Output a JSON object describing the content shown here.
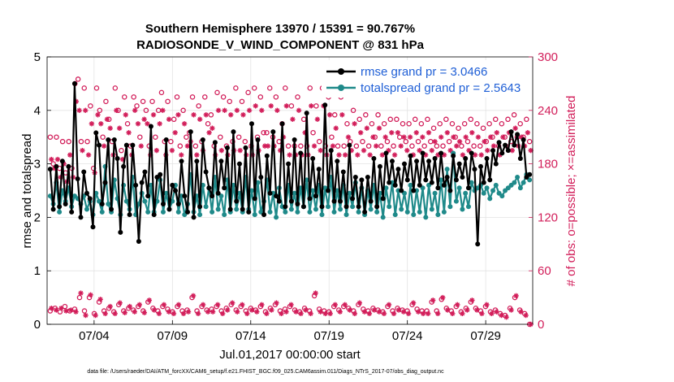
{
  "chart_data": {
    "type": "line",
    "title": "Southern Hemisphere 13970 / 15391 = 90.767%",
    "subtitle": "RADIOSONDE_V_WIND_COMPONENT @ 831 hPa",
    "xlabel": "Jul.01,2017 00:00:00 start",
    "ylabel": "rmse and totalspread",
    "ylabel_right": "# of obs: o=possible; ×=assimilated",
    "footnote": "data file: /Users/raeder/DAI/ATM_forcXX/CAM6_setup/f.e21.FHIST_BGC.f09_025.CAM6assim.011/Diags_NTrS_2017-07/obs_diag_output.nc",
    "x_tick_labels": [
      "07/04",
      "07/09",
      "07/14",
      "07/19",
      "07/24",
      "07/29"
    ],
    "x_tick_days": [
      4,
      9,
      14,
      19,
      24,
      29
    ],
    "xlim": [
      1.0,
      32.0
    ],
    "ylim": [
      0,
      5
    ],
    "y_ticks": [
      "0",
      "1",
      "2",
      "3",
      "4",
      "5"
    ],
    "y2lim": [
      0,
      300
    ],
    "y2_ticks": [
      "0",
      "60",
      "120",
      "180",
      "240",
      "300"
    ],
    "grid": true,
    "legend_position": "top-right",
    "series": [
      {
        "name": "rmse grand pr = 3.0466",
        "color": "#000000",
        "axis": "left",
        "values": [
          2.9,
          2.15,
          2.95,
          2.2,
          3.05,
          2.25,
          2.95,
          2.1,
          4.5,
          2.72,
          2.0,
          2.85,
          2.45,
          2.35,
          1.82,
          3.58,
          3.35,
          2.25,
          2.65,
          3.45,
          2.15,
          3.45,
          3.1,
          1.72,
          2.95,
          3.35,
          2.05,
          3.35,
          2.6,
          1.55,
          2.65,
          2.85,
          2.4,
          3.7,
          2.05,
          2.75,
          2.8,
          2.25,
          3.45,
          2.15,
          2.6,
          2.5,
          2.25,
          3.05,
          2.4,
          2.1,
          3.6,
          2.0,
          3.05,
          2.2,
          3.45,
          2.85,
          2.55,
          2.4,
          3.4,
          2.45,
          3.05,
          2.55,
          3.3,
          2.15,
          3.6,
          2.3,
          3.0,
          2.15,
          3.3,
          2.1,
          3.75,
          2.35,
          3.45,
          2.75,
          2.05,
          3.15,
          2.45,
          3.6,
          2.4,
          2.3,
          3.75,
          2.2,
          3.0,
          2.3,
          3.45,
          2.25,
          3.2,
          2.2,
          3.95,
          2.35,
          3.1,
          2.4,
          2.9,
          2.2,
          4.1,
          2.5,
          3.25,
          2.3,
          3.05,
          2.3,
          2.85,
          2.2,
          3.35,
          2.35,
          2.75,
          2.2,
          2.7,
          2.1,
          2.75,
          2.3,
          3.1,
          2.2,
          2.95,
          2.35,
          3.2,
          2.65,
          3.05,
          2.6,
          2.9,
          2.5,
          3.0,
          2.7,
          3.15,
          2.5,
          3.05,
          2.6,
          3.2,
          2.7,
          3.05,
          2.65,
          3.1,
          2.55,
          3.2,
          2.6,
          2.75,
          2.5,
          3.15,
          2.7,
          3.0,
          2.75,
          3.1,
          2.55,
          3.2,
          2.9,
          1.5,
          2.95,
          2.65,
          3.1,
          2.7,
          3.25,
          3.0,
          3.4,
          3.2,
          3.35,
          3.25,
          3.6,
          3.35,
          3.55,
          3.1,
          3.45,
          2.75,
          2.8
        ]
      },
      {
        "name": "totalspread grand pr = 2.5643",
        "color": "#1f8a8a",
        "axis": "left",
        "values": [
          2.4,
          2.25,
          2.65,
          2.1,
          2.5,
          2.3,
          2.55,
          2.2,
          2.4,
          2.35,
          2.25,
          2.4,
          2.15,
          2.3,
          2.05,
          2.45,
          2.3,
          2.1,
          2.95,
          2.25,
          2.1,
          2.7,
          2.35,
          2.05,
          2.6,
          2.3,
          2.15,
          2.75,
          2.05,
          2.25,
          2.45,
          2.3,
          2.1,
          2.6,
          2.1,
          2.3,
          2.7,
          2.1,
          2.45,
          2.15,
          2.3,
          2.6,
          2.1,
          2.4,
          2.05,
          2.25,
          2.8,
          2.1,
          2.4,
          2.05,
          2.6,
          2.2,
          2.55,
          2.1,
          2.75,
          2.15,
          2.4,
          2.05,
          2.7,
          2.1,
          2.6,
          2.15,
          2.45,
          2.1,
          2.75,
          2.15,
          2.5,
          2.05,
          2.65,
          2.1,
          2.3,
          2.7,
          2.1,
          2.45,
          2.0,
          2.55,
          2.2,
          2.1,
          2.6,
          2.15,
          2.45,
          2.1,
          2.55,
          2.2,
          2.7,
          2.1,
          2.5,
          2.15,
          2.6,
          2.05,
          2.55,
          2.2,
          2.75,
          2.1,
          2.5,
          2.15,
          2.6,
          2.05,
          2.45,
          2.2,
          2.65,
          2.1,
          2.55,
          2.05,
          2.5,
          2.15,
          2.6,
          2.1,
          2.45,
          2.0,
          2.55,
          2.2,
          2.65,
          2.05,
          2.5,
          2.15,
          2.45,
          2.1,
          2.6,
          2.05,
          2.5,
          2.1,
          2.55,
          2.0,
          2.6,
          2.15,
          2.45,
          2.05,
          2.7,
          2.1,
          2.9,
          2.2,
          3.2,
          2.3,
          2.55,
          2.15,
          2.45,
          2.2,
          2.65,
          2.5,
          2.55,
          2.6,
          2.45,
          2.55,
          2.35,
          2.5,
          2.6,
          2.45,
          2.4,
          2.5,
          2.55,
          2.6,
          2.65,
          2.75,
          2.55,
          2.65,
          2.8,
          2.7
        ]
      }
    ],
    "obs_possible": {
      "name": "possible",
      "marker": "o",
      "color": "#d21e5a",
      "axis": "right",
      "values": [
        210,
        180,
        210,
        175,
        205,
        170,
        205,
        175,
        270,
        275,
        205,
        265,
        205,
        245,
        175,
        265,
        240,
        210,
        250,
        230,
        205,
        265,
        240,
        195,
        255,
        225,
        200,
        255,
        245,
        210,
        250,
        240,
        200,
        250,
        210,
        240,
        260,
        205,
        250,
        205,
        230,
        255,
        200,
        240,
        210,
        215,
        255,
        200,
        245,
        205,
        255,
        225,
        235,
        200,
        260,
        210,
        255,
        200,
        250,
        205,
        265,
        210,
        250,
        205,
        260,
        200,
        265,
        210,
        255,
        215,
        215,
        265,
        210,
        255,
        205,
        225,
        265,
        200,
        245,
        200,
        255,
        200,
        230,
        200,
        265,
        215,
        245,
        205,
        265,
        200,
        255,
        210,
        235,
        200,
        255,
        200,
        225,
        205,
        240,
        200,
        230,
        205,
        235,
        200,
        225,
        210,
        235,
        200,
        225,
        205,
        230,
        200,
        230,
        210,
        225,
        205,
        225,
        200,
        230,
        205,
        225,
        200,
        230,
        205,
        220,
        200,
        225,
        200,
        230,
        205,
        225,
        210,
        220,
        200,
        225,
        205,
        230,
        200,
        225,
        200,
        220,
        205,
        225,
        210,
        230,
        200,
        225,
        210,
        230,
        205,
        235,
        210,
        225,
        210,
        230,
        205
      ]
    },
    "obs_assimilated": {
      "name": "assimilated",
      "marker": "x",
      "color": "#d21e5a",
      "axis": "right",
      "values": [
        185,
        175,
        185,
        165,
        180,
        160,
        190,
        165,
        250,
        240,
        195,
        240,
        190,
        225,
        170,
        235,
        225,
        200,
        230,
        220,
        190,
        240,
        220,
        185,
        235,
        215,
        190,
        240,
        225,
        200,
        230,
        225,
        190,
        235,
        195,
        225,
        240,
        190,
        230,
        195,
        215,
        235,
        190,
        225,
        200,
        205,
        235,
        190,
        230,
        195,
        235,
        215,
        220,
        190,
        240,
        195,
        240,
        190,
        235,
        195,
        240,
        195,
        235,
        190,
        240,
        190,
        245,
        195,
        240,
        200,
        200,
        245,
        200,
        240,
        195,
        210,
        245,
        190,
        230,
        190,
        240,
        190,
        215,
        190,
        245,
        200,
        230,
        195,
        245,
        190,
        235,
        200,
        220,
        190,
        235,
        190,
        210,
        195,
        225,
        190,
        215,
        195,
        220,
        190,
        210,
        200,
        220,
        190,
        210,
        195,
        215,
        190,
        215,
        200,
        210,
        195,
        210,
        190,
        215,
        195,
        210,
        190,
        215,
        195,
        205,
        190,
        210,
        190,
        215,
        195,
        210,
        200,
        205,
        190,
        210,
        195,
        215,
        190,
        210,
        190,
        205,
        195,
        210,
        200,
        215,
        190,
        210,
        200,
        215,
        195,
        220,
        200,
        210,
        200,
        215,
        195
      ]
    },
    "obs_low_possible": {
      "name": "possible (low cluster)",
      "marker": "o",
      "color": "#d21e5a",
      "axis": "right",
      "values": [
        15,
        18,
        14,
        20,
        15,
        17,
        30,
        15,
        30,
        12,
        25,
        15,
        18,
        14,
        22,
        15,
        18,
        16,
        20,
        15,
        25,
        18,
        15,
        20,
        17,
        14,
        20,
        15,
        16,
        30,
        15,
        20,
        16,
        17,
        20,
        15,
        18,
        22,
        16,
        20,
        15,
        18,
        16,
        20,
        14,
        18,
        22,
        15,
        17,
        20,
        16,
        14,
        18,
        15,
        32,
        17,
        15,
        14,
        20,
        16,
        20,
        18,
        15,
        22,
        17,
        15,
        18,
        16,
        14,
        20,
        15,
        18,
        16,
        15,
        22,
        17,
        15,
        15,
        25,
        15,
        28,
        18,
        15,
        20,
        14,
        18,
        25,
        18,
        15,
        20,
        14,
        16,
        12,
        10,
        18,
        30,
        16,
        12,
        0
      ]
    },
    "obs_low_assimilated": {
      "name": "assimilated (low cluster)",
      "marker": "x",
      "color": "#d21e5a",
      "axis": "right",
      "values": [
        18,
        16,
        18,
        15,
        16,
        14,
        35,
        10,
        33,
        10,
        28,
        12,
        20,
        12,
        24,
        13,
        20,
        14,
        22,
        13,
        27,
        16,
        12,
        22,
        14,
        12,
        22,
        12,
        14,
        32,
        12,
        22,
        14,
        14,
        22,
        12,
        16,
        24,
        14,
        22,
        12,
        16,
        14,
        22,
        12,
        16,
        24,
        12,
        14,
        22,
        14,
        12,
        16,
        12,
        35,
        14,
        12,
        12,
        22,
        14,
        22,
        16,
        12,
        24,
        14,
        12,
        16,
        14,
        12,
        22,
        12,
        16,
        14,
        12,
        24,
        14,
        12,
        12,
        27,
        12,
        30,
        16,
        12,
        22,
        12,
        16,
        27,
        16,
        12,
        22,
        12,
        14,
        10,
        8,
        16,
        32,
        14,
        10,
        0
      ]
    }
  }
}
